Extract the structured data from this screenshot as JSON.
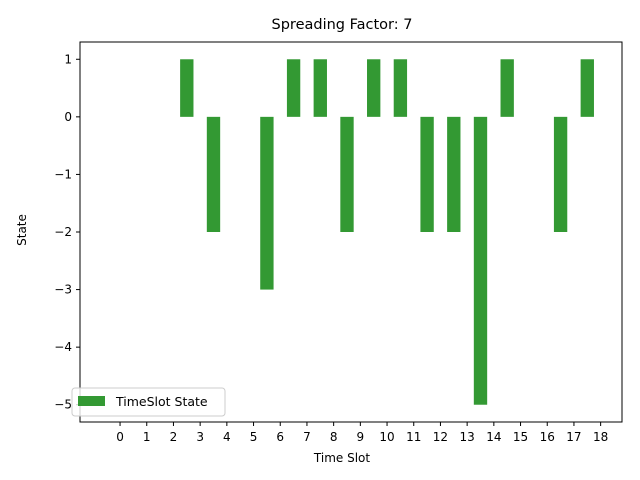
{
  "chart_data": {
    "type": "bar",
    "title": "Spreading Factor: 7",
    "xlabel": "Time Slot",
    "ylabel": "State",
    "x_ticks": [
      "0",
      "1",
      "2",
      "3",
      "4",
      "5",
      "6",
      "7",
      "8",
      "9",
      "10",
      "11",
      "12",
      "13",
      "14",
      "15",
      "16",
      "17",
      "18"
    ],
    "y_ticks": [
      1,
      0,
      -1,
      -2,
      -3,
      -4,
      -5
    ],
    "y_tick_labels": [
      "1",
      "0",
      "−1",
      "−2",
      "−3",
      "−4",
      "−5"
    ],
    "ylim": [
      -5.3,
      1.3
    ],
    "xlim": [
      -1.5,
      18.8
    ],
    "series": [
      {
        "name": "TimeSlot State",
        "color": "#339933",
        "x": [
          2.5,
          3.5,
          5.5,
          6.5,
          7.5,
          8.5,
          9.5,
          10.5,
          11.5,
          12.5,
          13.5,
          14.5,
          16.5,
          17.5
        ],
        "values": [
          1,
          -2,
          -3,
          1,
          1,
          -2,
          1,
          1,
          -2,
          -2,
          -5,
          1,
          -2,
          1
        ]
      }
    ],
    "bar_width": 0.5,
    "legend": {
      "placement": "lower-left",
      "entries": [
        "TimeSlot State"
      ]
    },
    "grid": false
  }
}
